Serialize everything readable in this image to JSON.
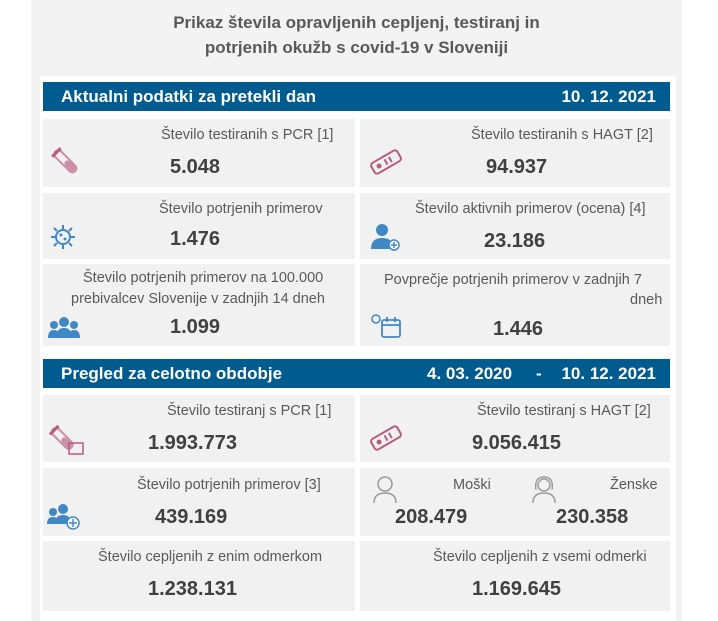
{
  "page_title_line1": "Prikaz števila opravljenih cepljenj, testiranj in",
  "page_title_line2": "potrjenih okužb s covid-19 v Sloveniji",
  "daily": {
    "heading": "Aktualni podatki za pretekli dan",
    "date": "10. 12. 2021",
    "pcr_label": "Število testiranih s PCR [1]",
    "pcr_value": "5.048",
    "hagt_label": "Število testiranih s HAGT [2]",
    "hagt_value": "94.937",
    "confirmed_label": "Število potrjenih primerov",
    "confirmed_value": "1.476",
    "active_label": "Število aktivnih primerov (ocena) [4]",
    "active_value": "23.186",
    "per100k_label_line1": "Število potrjenih primerov na 100.000",
    "per100k_label_line2": "prebivalcev Slovenije v zadnjih 14 dneh",
    "per100k_value": "1.099",
    "avg7_label_line1": "Povprečje potrjenih primerov v zadnjih 7",
    "avg7_label_line2": "dneh",
    "avg7_value": "1.446"
  },
  "overall": {
    "heading": "Pregled za celotno obdobje",
    "date_from": "4. 03. 2020",
    "date_sep": "-",
    "date_to": "10. 12. 2021",
    "pcr_label": "Število testiranj s PCR [1]",
    "pcr_value": "1.993.773",
    "hagt_label": "Število testiranj s HAGT [2]",
    "hagt_value": "9.056.415",
    "confirmed_label": "Število potrjenih primerov [3]",
    "confirmed_value": "439.169",
    "male_label": "Moški",
    "male_value": "208.479",
    "female_label": "Ženske",
    "female_value": "230.358",
    "vacc_one_label": "Število cepljenih z enim odmerkom",
    "vacc_one_value": "1.238.131",
    "vacc_all_label": "Število cepljenih z vsemi odmerki",
    "vacc_all_value": "1.169.645"
  },
  "icons": {
    "test_tube": "test-tube-icon",
    "rapid_test": "rapid-test-icon",
    "virus": "virus-icon",
    "person_plus": "person-plus-icon",
    "group": "group-icon",
    "calendar": "calendar-icon",
    "male": "male-icon",
    "female": "female-icon"
  },
  "colors": {
    "band": "#005b8f",
    "card": "#f1f1f1",
    "accent_pink": "#b85a7c",
    "accent_blue": "#3f88c5"
  }
}
